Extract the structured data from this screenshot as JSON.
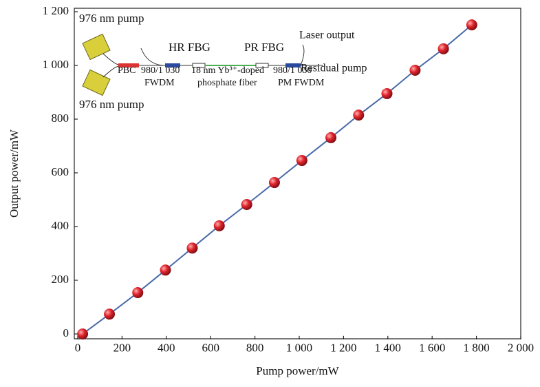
{
  "chart_data": {
    "type": "scatter",
    "xlabel": "Pump power/mW",
    "ylabel": "Output power/mW",
    "xlim": [
      0,
      2000
    ],
    "xticks": [
      0,
      200,
      400,
      600,
      800,
      {
        "value": 1000,
        "label": "1 000"
      },
      {
        "value": 1200,
        "label": "1 200"
      },
      {
        "value": 1400,
        "label": "1 400"
      },
      {
        "value": 1600,
        "label": "1 600"
      },
      {
        "value": 1800,
        "label": "1 800"
      },
      {
        "value": 2000,
        "label": "2 000"
      }
    ],
    "ylim": [
      -20,
      1200
    ],
    "yticks": [
      0,
      200,
      400,
      600,
      800,
      {
        "value": 1000,
        "label": "1 000"
      },
      {
        "value": 1200,
        "label": "1 200"
      }
    ],
    "series": [
      {
        "color": "#d8202a",
        "line_color": "#4a6aa8",
        "x": [
          22,
          143,
          271,
          396,
          517,
          639,
          763,
          888,
          1012,
          1143,
          1268,
          1396,
          1523,
          1651,
          1779
        ],
        "values": [
          0,
          74,
          154,
          238,
          320,
          403,
          482,
          564,
          646,
          731,
          815,
          895,
          982,
          1062,
          1151
        ]
      }
    ],
    "annotations": [
      "976 nm pump",
      "976 nm pump",
      "HR FBG",
      "PR FBG",
      "Laser output",
      "Residual pump",
      "PBC",
      "980/1 030",
      "FWDM",
      "18 nm Yb³⁺-doped",
      "phosphate fiber",
      "980/1 030",
      "PM FWDM"
    ]
  }
}
